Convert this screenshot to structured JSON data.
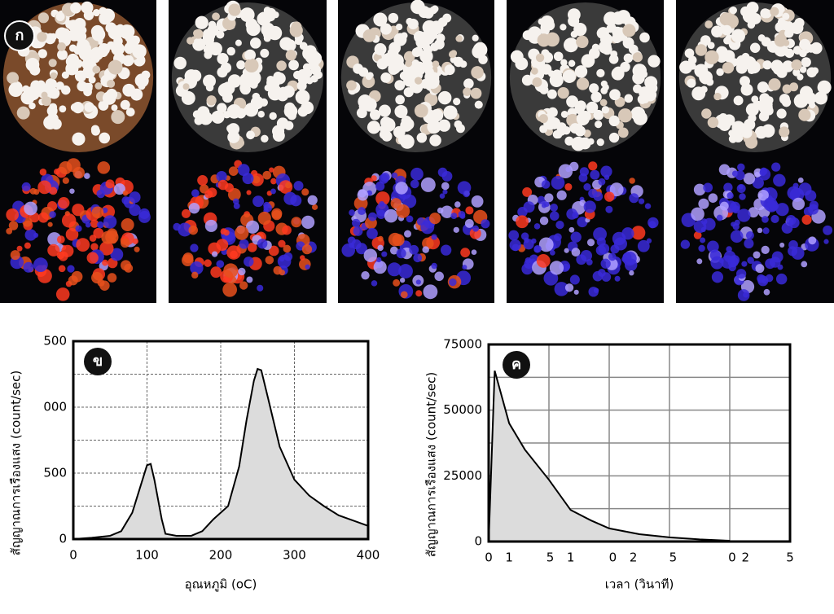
{
  "photo_strip": {
    "label": "ก"
  },
  "chart_data": [
    {
      "type": "area",
      "label": "ข",
      "xlabel": "อุณหภูมิ (oC)",
      "ylabel": "สัญญาณการเรืองแสง (count/sec)",
      "x": [
        0,
        25,
        50,
        65,
        80,
        90,
        100,
        105,
        110,
        120,
        125,
        140,
        160,
        175,
        190,
        210,
        225,
        235,
        245,
        250,
        255,
        265,
        280,
        300,
        320,
        340,
        360,
        380,
        400
      ],
      "values": [
        0,
        10,
        25,
        60,
        200,
        380,
        560,
        570,
        450,
        150,
        40,
        25,
        25,
        60,
        150,
        250,
        550,
        900,
        1200,
        1290,
        1280,
        1050,
        700,
        450,
        330,
        250,
        180,
        140,
        100
      ],
      "xlim": [
        0,
        400
      ],
      "ylim": [
        0,
        1500
      ],
      "xticks": [
        0,
        100,
        200,
        300,
        400
      ],
      "yticks": [
        0,
        {
          "value": 500,
          "label": "500"
        },
        {
          "value": 1000,
          "label": "000"
        },
        {
          "value": 1500,
          "label": "500"
        }
      ],
      "minor_yticks": [
        250,
        750,
        1250
      ],
      "grid": "dashed",
      "color": "#dcdcdc"
    },
    {
      "type": "area",
      "label": "ค",
      "xlabel": "เวลา (วินาที)",
      "ylabel": "สัญญาณการเรืองแสง (count/sec)",
      "x": [
        0,
        5,
        17,
        30,
        50,
        68,
        85,
        100,
        125,
        150,
        175,
        200
      ],
      "values": [
        0,
        65000,
        45000,
        35000,
        23500,
        12000,
        8000,
        5000,
        2800,
        1600,
        800,
        300
      ],
      "xlim": [
        0,
        250
      ],
      "ylim": [
        0,
        75000
      ],
      "xticks": [
        0,
        {
          "value": 17,
          "label": "1"
        },
        {
          "value": 51,
          "label": "5"
        },
        {
          "value": 68,
          "label": "1"
        },
        {
          "value": 103,
          "label": "0"
        },
        {
          "value": 120,
          "label": "2"
        },
        {
          "value": 153,
          "label": "5"
        },
        {
          "value": 202,
          "label": "0"
        },
        {
          "value": 213,
          "label": "2"
        },
        {
          "value": 250,
          "label": "5"
        }
      ],
      "xgrid": [
        50,
        100,
        150,
        200
      ],
      "yticks": [
        0,
        25000,
        50000,
        75000
      ],
      "minor_yticks": [
        12500,
        37500,
        62500
      ],
      "grid": "solid",
      "color": "#dcdcdc"
    }
  ]
}
